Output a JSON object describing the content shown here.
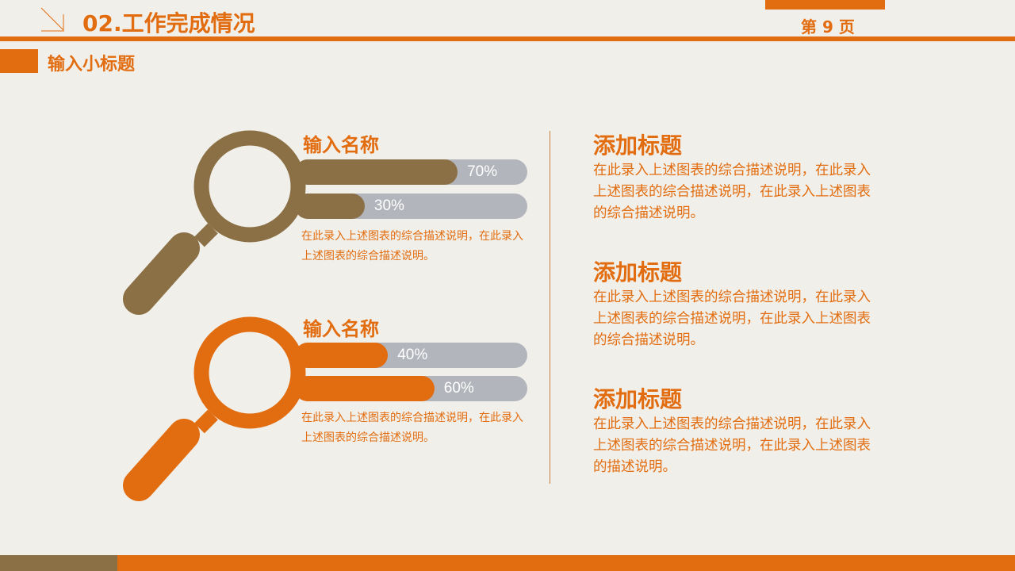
{
  "header": {
    "title": "02.工作完成情况",
    "page": "第 9 页",
    "subtitle": "输入小标题"
  },
  "colors": {
    "accent": "#e26d10",
    "brown": "#8b7045",
    "track": "#b3b5bc",
    "background": "#f1efea"
  },
  "groups": [
    {
      "name": "输入名称",
      "color": "#8b7045",
      "bars": [
        {
          "value": 70,
          "label": "70%"
        },
        {
          "value": 30,
          "label": "30%"
        }
      ],
      "desc": "在此录入上述图表的综合描述说明，在此录入上述图表的综合描述说明。"
    },
    {
      "name": "输入名称",
      "color": "#e26d10",
      "bars": [
        {
          "value": 40,
          "label": "40%"
        },
        {
          "value": 60,
          "label": "60%"
        }
      ],
      "desc": "在此录入上述图表的综合描述说明，在此录入上述图表的综合描述说明。"
    }
  ],
  "right": [
    {
      "title": "添加标题",
      "text": "在此录入上述图表的综合描述说明，在此录入上述图表的综合描述说明，在此录入上述图表的综合描述说明。"
    },
    {
      "title": "添加标题",
      "text": "在此录入上述图表的综合描述说明，在此录入上述图表的综合描述说明，在此录入上述图表的综合描述说明。"
    },
    {
      "title": "添加标题",
      "text": "在此录入上述图表的综合描述说明，在此录入上述图表的综合描述说明，在此录入上述图表的描述说明。"
    }
  ]
}
